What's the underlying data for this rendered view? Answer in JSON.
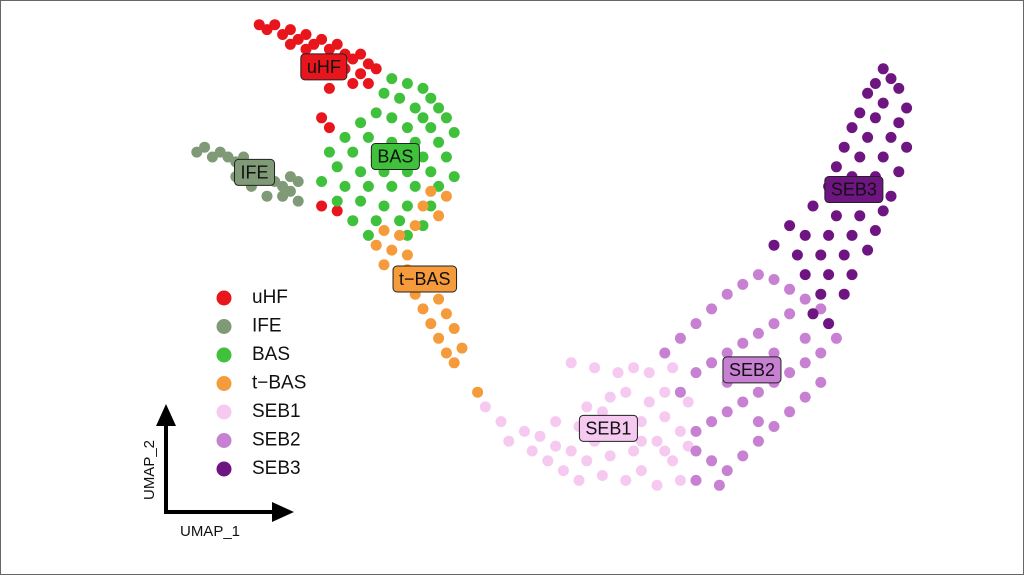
{
  "chart_data": {
    "type": "scatter",
    "x_label": "UMAP_1",
    "y_label": "UMAP_2",
    "xlim": [
      0,
      100
    ],
    "ylim": [
      0,
      100
    ],
    "legend": "left",
    "series": [
      {
        "name": "uHF",
        "color": "#e8161c",
        "x": [
          14,
          15,
          16,
          17,
          18,
          19,
          20,
          21,
          22,
          23,
          24,
          25,
          26,
          27,
          28,
          29,
          27,
          25,
          22,
          20,
          18,
          23,
          22,
          23,
          22,
          24,
          26,
          28
        ],
        "y": [
          97,
          96,
          97,
          95,
          96,
          94,
          95,
          93,
          94,
          92,
          93,
          91,
          90,
          91,
          89,
          88,
          87,
          88,
          90,
          92,
          93,
          84,
          78,
          76,
          60,
          59,
          85,
          85
        ]
      },
      {
        "name": "IFE",
        "color": "#809a78",
        "x": [
          6,
          7,
          8,
          9,
          10,
          11,
          12,
          13,
          14,
          15,
          16,
          17,
          18,
          19,
          17,
          18,
          13,
          11,
          19,
          15
        ],
        "y": [
          71,
          72,
          70,
          71,
          70,
          69,
          70,
          68,
          67,
          66,
          65,
          64,
          63,
          65,
          62,
          66,
          64,
          66,
          61,
          62
        ]
      },
      {
        "name": "BAS",
        "color": "#3fc13b",
        "x": [
          31,
          33,
          35,
          30,
          32,
          36,
          34,
          37,
          29,
          31,
          35,
          38,
          27,
          33,
          36,
          39,
          25,
          28,
          31,
          34,
          37,
          23,
          26,
          29,
          32,
          35,
          38,
          24,
          27,
          30,
          33,
          36,
          39,
          22,
          25,
          28,
          31,
          34,
          37,
          24,
          27,
          30,
          33,
          36,
          26,
          29,
          32,
          35,
          28,
          33
        ],
        "y": [
          86,
          85,
          84,
          83,
          82,
          82,
          80,
          80,
          79,
          78,
          78,
          78,
          77,
          76,
          76,
          75,
          74,
          74,
          73,
          73,
          73,
          71,
          71,
          70,
          70,
          70,
          70,
          68,
          67,
          67,
          67,
          67,
          66,
          65,
          64,
          64,
          64,
          64,
          64,
          61,
          61,
          60,
          60,
          60,
          57,
          57,
          57,
          56,
          54,
          54
        ]
      },
      {
        "name": "t−BAS",
        "color": "#f59b3b",
        "x": [
          36,
          38,
          35,
          37,
          34,
          30,
          32,
          29,
          31,
          33,
          30,
          33,
          35,
          32,
          36,
          34,
          37,
          35,
          38,
          36,
          39,
          37,
          40,
          38,
          39,
          42
        ],
        "y": [
          63,
          62,
          60,
          58,
          56,
          55,
          54,
          52,
          51,
          50,
          48,
          47,
          46,
          45,
          44,
          42,
          41,
          39,
          38,
          36,
          35,
          33,
          31,
          30,
          28,
          22
        ]
      },
      {
        "name": "SEB1",
        "color": "#f6c9f1",
        "x": [
          43,
          45,
          46,
          48,
          49,
          50,
          51,
          52,
          53,
          54,
          55,
          55,
          56,
          57,
          58,
          58,
          59,
          60,
          61,
          61,
          62,
          62,
          63,
          63,
          64,
          64,
          65,
          65,
          66,
          66,
          67,
          67,
          68,
          68,
          69,
          60,
          57,
          54,
          59,
          56,
          52,
          63,
          66,
          69
        ],
        "y": [
          19,
          16,
          12,
          14,
          10,
          13,
          8,
          11,
          6,
          10,
          4,
          15,
          8,
          12,
          5,
          18,
          9,
          14,
          4,
          22,
          10,
          27,
          16,
          6,
          20,
          26,
          12,
          3,
          22,
          17,
          8,
          27,
          14,
          4,
          20,
          26,
          27,
          28,
          21,
          19,
          16,
          12,
          10,
          11
        ]
      },
      {
        "name": "SEB2",
        "color": "#c780d2",
        "x": [
          66,
          68,
          70,
          72,
          74,
          76,
          78,
          80,
          82,
          84,
          86,
          87,
          88,
          86,
          84,
          82,
          80,
          78,
          76,
          74,
          72,
          70,
          70,
          72,
          74,
          76,
          78,
          80,
          82,
          84,
          86,
          70,
          73,
          68,
          70,
          72,
          74,
          76,
          78,
          80,
          82,
          84,
          76,
          80,
          74,
          78
        ],
        "y": [
          30,
          33,
          36,
          39,
          42,
          44,
          46,
          45,
          43,
          41,
          39,
          36,
          33,
          30,
          28,
          26,
          24,
          22,
          20,
          18,
          16,
          14,
          10,
          8,
          6,
          9,
          12,
          15,
          18,
          21,
          24,
          4,
          3,
          22,
          26,
          28,
          30,
          32,
          34,
          36,
          38,
          33,
          26,
          30,
          24,
          16
        ]
      },
      {
        "name": "SEB3",
        "color": "#6e1581",
        "x": [
          94,
          95,
          93,
          96,
          92,
          94,
          97,
          91,
          93,
          96,
          90,
          92,
          95,
          97,
          89,
          91,
          94,
          88,
          90,
          93,
          96,
          87,
          89,
          92,
          95,
          85,
          88,
          91,
          94,
          82,
          84,
          87,
          90,
          93,
          80,
          83,
          86,
          89,
          92,
          84,
          87,
          90,
          86,
          89,
          85,
          87
        ],
        "y": [
          88,
          86,
          85,
          84,
          83,
          81,
          80,
          79,
          78,
          77,
          76,
          74,
          74,
          72,
          72,
          70,
          70,
          68,
          66,
          66,
          67,
          64,
          62,
          62,
          62,
          60,
          58,
          58,
          59,
          56,
          54,
          54,
          54,
          55,
          52,
          50,
          50,
          50,
          51,
          46,
          46,
          46,
          42,
          42,
          38,
          36
        ]
      }
    ]
  }
}
